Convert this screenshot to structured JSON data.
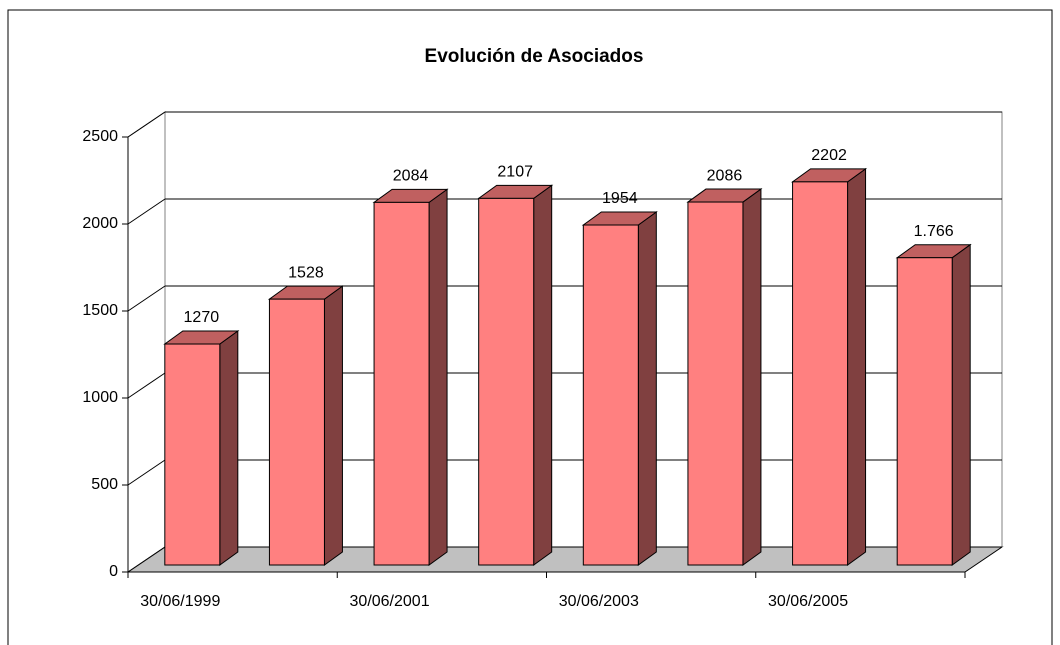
{
  "chart_data": {
    "type": "bar3d",
    "title": "Evolución de Asociados",
    "categories": [
      "30/06/1999",
      null,
      "30/06/2001",
      null,
      "30/06/2003",
      null,
      "30/06/2005",
      null
    ],
    "values": [
      1270,
      1528,
      2084,
      2107,
      1954,
      2086,
      2202,
      1766
    ],
    "value_labels": [
      "1270",
      "1528",
      "2084",
      "2107",
      "1954",
      "2086",
      "2202",
      "1.766"
    ],
    "color": "#ff8080",
    "ylim": [
      0,
      2500
    ],
    "yticks": [
      0,
      500,
      1000,
      1500,
      2000,
      2500
    ],
    "grid": true
  }
}
